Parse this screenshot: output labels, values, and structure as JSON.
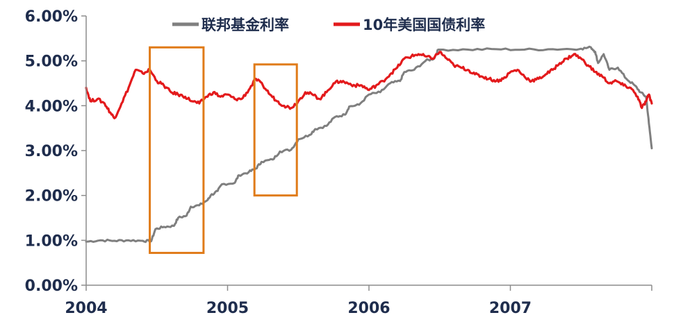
{
  "chart_data": {
    "type": "line",
    "x_unit": "year (decimal)",
    "xlim": [
      2004.0,
      2008.0
    ],
    "ylim": [
      0,
      6
    ],
    "y_ticks": [
      "0.00%",
      "1.00%",
      "2.00%",
      "3.00%",
      "4.00%",
      "5.00%",
      "6.00%"
    ],
    "y_tick_values": [
      0,
      1,
      2,
      3,
      4,
      5,
      6
    ],
    "x_ticks": [
      "2004",
      "2005",
      "2006",
      "2007"
    ],
    "x_tick_values": [
      2004,
      2005,
      2006,
      2007
    ],
    "legend_placement": "top-center",
    "grid": false,
    "series": [
      {
        "name": "联邦基金利率",
        "color": "#7f7f7f",
        "points": [
          [
            2004.0,
            0.97
          ],
          [
            2004.1,
            1.0
          ],
          [
            2004.2,
            0.99
          ],
          [
            2004.3,
            1.0
          ],
          [
            2004.4,
            0.99
          ],
          [
            2004.46,
            0.98
          ],
          [
            2004.49,
            1.25
          ],
          [
            2004.55,
            1.3
          ],
          [
            2004.62,
            1.32
          ],
          [
            2004.65,
            1.5
          ],
          [
            2004.71,
            1.55
          ],
          [
            2004.74,
            1.75
          ],
          [
            2004.8,
            1.78
          ],
          [
            2004.86,
            1.9
          ],
          [
            2004.88,
            2.0
          ],
          [
            2004.93,
            2.1
          ],
          [
            2004.96,
            2.25
          ],
          [
            2005.05,
            2.28
          ],
          [
            2005.08,
            2.45
          ],
          [
            2005.15,
            2.52
          ],
          [
            2005.2,
            2.6
          ],
          [
            2005.24,
            2.75
          ],
          [
            2005.32,
            2.8
          ],
          [
            2005.37,
            2.98
          ],
          [
            2005.45,
            3.02
          ],
          [
            2005.5,
            3.25
          ],
          [
            2005.58,
            3.35
          ],
          [
            2005.62,
            3.48
          ],
          [
            2005.7,
            3.55
          ],
          [
            2005.76,
            3.75
          ],
          [
            2005.83,
            3.8
          ],
          [
            2005.86,
            3.98
          ],
          [
            2005.93,
            4.02
          ],
          [
            2006.0,
            4.25
          ],
          [
            2006.08,
            4.3
          ],
          [
            2006.15,
            4.5
          ],
          [
            2006.22,
            4.55
          ],
          [
            2006.25,
            4.75
          ],
          [
            2006.32,
            4.8
          ],
          [
            2006.4,
            5.0
          ],
          [
            2006.46,
            5.05
          ],
          [
            2006.49,
            5.25
          ],
          [
            2006.7,
            5.25
          ],
          [
            2006.9,
            5.26
          ],
          [
            2007.1,
            5.25
          ],
          [
            2007.3,
            5.26
          ],
          [
            2007.5,
            5.27
          ],
          [
            2007.57,
            5.3
          ],
          [
            2007.6,
            5.2
          ],
          [
            2007.62,
            4.95
          ],
          [
            2007.66,
            5.15
          ],
          [
            2007.7,
            4.8
          ],
          [
            2007.76,
            4.85
          ],
          [
            2007.82,
            4.6
          ],
          [
            2007.88,
            4.45
          ],
          [
            2007.92,
            4.3
          ],
          [
            2007.96,
            4.2
          ],
          [
            2007.98,
            3.6
          ],
          [
            2008.0,
            3.05
          ]
        ]
      },
      {
        "name": "10年美国国债利率",
        "color": "#e31a1c",
        "points": [
          [
            2004.0,
            4.4
          ],
          [
            2004.03,
            4.1
          ],
          [
            2004.08,
            4.15
          ],
          [
            2004.13,
            4.05
          ],
          [
            2004.17,
            3.85
          ],
          [
            2004.2,
            3.72
          ],
          [
            2004.25,
            4.05
          ],
          [
            2004.3,
            4.4
          ],
          [
            2004.35,
            4.8
          ],
          [
            2004.4,
            4.72
          ],
          [
            2004.45,
            4.8
          ],
          [
            2004.5,
            4.55
          ],
          [
            2004.55,
            4.45
          ],
          [
            2004.6,
            4.3
          ],
          [
            2004.65,
            4.25
          ],
          [
            2004.7,
            4.2
          ],
          [
            2004.75,
            4.1
          ],
          [
            2004.8,
            4.05
          ],
          [
            2004.85,
            4.2
          ],
          [
            2004.9,
            4.3
          ],
          [
            2004.95,
            4.2
          ],
          [
            2005.0,
            4.25
          ],
          [
            2005.05,
            4.15
          ],
          [
            2005.1,
            4.15
          ],
          [
            2005.15,
            4.35
          ],
          [
            2005.2,
            4.6
          ],
          [
            2005.25,
            4.45
          ],
          [
            2005.3,
            4.25
          ],
          [
            2005.35,
            4.1
          ],
          [
            2005.4,
            4.0
          ],
          [
            2005.45,
            3.95
          ],
          [
            2005.5,
            4.1
          ],
          [
            2005.55,
            4.3
          ],
          [
            2005.6,
            4.25
          ],
          [
            2005.65,
            4.15
          ],
          [
            2005.7,
            4.3
          ],
          [
            2005.75,
            4.5
          ],
          [
            2005.8,
            4.55
          ],
          [
            2005.85,
            4.5
          ],
          [
            2005.9,
            4.45
          ],
          [
            2005.95,
            4.45
          ],
          [
            2006.0,
            4.35
          ],
          [
            2006.05,
            4.45
          ],
          [
            2006.1,
            4.55
          ],
          [
            2006.15,
            4.7
          ],
          [
            2006.2,
            4.85
          ],
          [
            2006.25,
            5.05
          ],
          [
            2006.3,
            5.1
          ],
          [
            2006.35,
            5.15
          ],
          [
            2006.4,
            5.1
          ],
          [
            2006.45,
            5.05
          ],
          [
            2006.5,
            5.2
          ],
          [
            2006.55,
            5.05
          ],
          [
            2006.6,
            4.9
          ],
          [
            2006.65,
            4.85
          ],
          [
            2006.7,
            4.8
          ],
          [
            2006.75,
            4.7
          ],
          [
            2006.8,
            4.65
          ],
          [
            2006.85,
            4.6
          ],
          [
            2006.9,
            4.55
          ],
          [
            2006.95,
            4.6
          ],
          [
            2007.0,
            4.75
          ],
          [
            2007.05,
            4.8
          ],
          [
            2007.1,
            4.65
          ],
          [
            2007.15,
            4.55
          ],
          [
            2007.2,
            4.6
          ],
          [
            2007.25,
            4.7
          ],
          [
            2007.3,
            4.8
          ],
          [
            2007.35,
            4.95
          ],
          [
            2007.4,
            5.05
          ],
          [
            2007.45,
            5.15
          ],
          [
            2007.5,
            5.05
          ],
          [
            2007.55,
            4.9
          ],
          [
            2007.6,
            4.75
          ],
          [
            2007.65,
            4.65
          ],
          [
            2007.7,
            4.5
          ],
          [
            2007.75,
            4.55
          ],
          [
            2007.8,
            4.45
          ],
          [
            2007.85,
            4.4
          ],
          [
            2007.9,
            4.2
          ],
          [
            2007.93,
            3.95
          ],
          [
            2007.96,
            4.1
          ],
          [
            2007.98,
            4.25
          ],
          [
            2008.0,
            4.05
          ]
        ]
      }
    ],
    "highlight_boxes": [
      {
        "x_from": 2004.45,
        "x_to": 2004.83,
        "y_from": 0.72,
        "y_to": 5.3,
        "color": "#e07b19"
      },
      {
        "x_from": 2005.19,
        "x_to": 2005.49,
        "y_from": 2.0,
        "y_to": 4.92,
        "color": "#e07b19"
      }
    ]
  }
}
